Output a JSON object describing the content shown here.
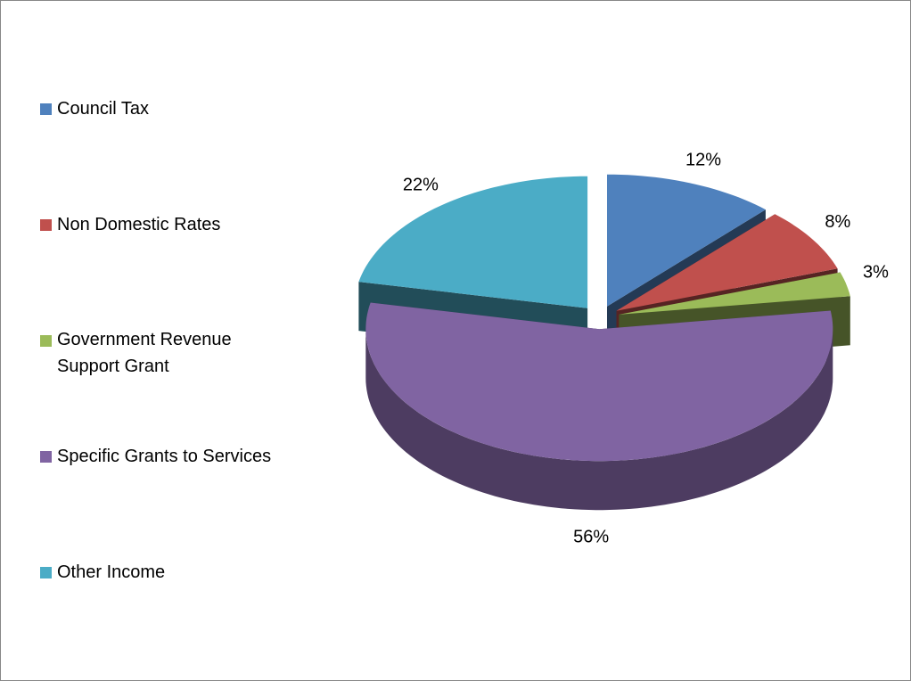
{
  "chart_data": {
    "type": "pie",
    "categories": [
      "Council Tax",
      "Non Domestic Rates",
      "Government Revenue Support Grant",
      "Specific Grants to Services",
      "Other Income"
    ],
    "values": [
      12,
      8,
      3,
      56,
      22
    ],
    "value_labels": [
      "12%",
      "8%",
      "3%",
      "56%",
      "22%"
    ],
    "colors": [
      "#4f81bd",
      "#c0504d",
      "#9bbb59",
      "#8064a2",
      "#4bacc6"
    ],
    "legend": "left"
  }
}
